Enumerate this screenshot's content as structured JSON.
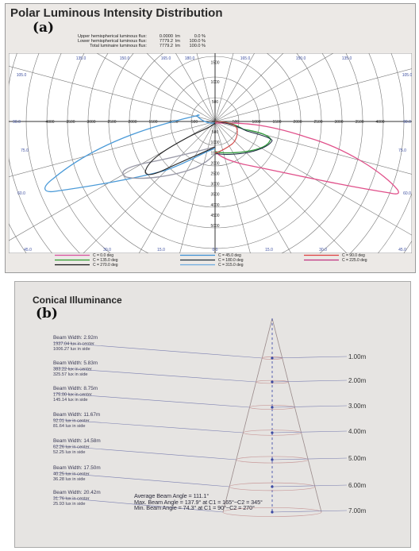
{
  "polar": {
    "title": "Polar Luminous Intensity Distribution",
    "tag": "(a)",
    "flux": [
      {
        "label": "Upper hemispherical luminous flux:",
        "value": "0.0000",
        "unit": "lm",
        "pct": "0.0 %"
      },
      {
        "label": "Lower hemispherical luminous flux:",
        "value": "7779.2",
        "unit": "lm",
        "pct": "100.0 %"
      },
      {
        "label": "Total luminaire luminous flux:",
        "value": "7779.2",
        "unit": "lm",
        "pct": "100.0 %"
      }
    ],
    "upper_ticks": [
      "500",
      "1000",
      "1500"
    ],
    "lower_ticks": [
      "500",
      "1000",
      "1500",
      "2000",
      "2500",
      "3000",
      "3500",
      "4000",
      "4500",
      "5000"
    ],
    "left_ticks": [
      "500",
      "1000",
      "1500",
      "2000",
      "2500",
      "3000",
      "3500",
      "4000"
    ],
    "right_ticks": [
      "500",
      "1000",
      "1500",
      "2000",
      "2500",
      "3000",
      "3500",
      "4000"
    ],
    "angle_labels": {
      "top": [
        "135.0",
        "150.0",
        "165.0",
        "180.0",
        "165.0",
        "150.0",
        "135.0"
      ],
      "upper_side": [
        "105.0",
        "105.0"
      ],
      "h_left": "90.0",
      "h_right": "90.0",
      "lower_side": [
        "75.0",
        "75.0"
      ],
      "low_side": [
        "60.0",
        "60.0"
      ],
      "bottom": [
        "45.0",
        "30.0",
        "15.0",
        "0.0",
        "15.0",
        "30.0",
        "45.0"
      ]
    },
    "legend": [
      {
        "label": "C = 0.0 deg",
        "color": "#d94fa0"
      },
      {
        "label": "C = 45.0 deg",
        "color": "#3c8fd6"
      },
      {
        "label": "C = 90.0 deg",
        "color": "#e04040"
      },
      {
        "label": "C = 135.0 deg",
        "color": "#2a9a2a"
      },
      {
        "label": "C = 180.0 deg",
        "color": "#20303c"
      },
      {
        "label": "C = 225.0 deg",
        "color": "#c03080"
      },
      {
        "label": "C = 270.0 deg",
        "color": "#111111"
      },
      {
        "label": "C = 315.0 deg",
        "color": "#6aaae0"
      }
    ],
    "curve_colors": {
      "c0": "#e0508a",
      "c45": "#4a9ad8",
      "c135": "#2f9a3a",
      "c180": "#1a2a40",
      "c225": "#9a9aa8",
      "c270": "#222222",
      "c90": "#d04848"
    }
  },
  "conical": {
    "title": "Conical Illuminance",
    "tag": "(b)",
    "levels": [
      {
        "beam": "Beam Width: 2.92m",
        "center": "1937.04 lux in center",
        "side": "1006.27 lux in side",
        "height": "1.00m"
      },
      {
        "beam": "Beam Width: 5.83m",
        "center": "383.22 lux in center",
        "side": "325.57 lux in side",
        "height": "2.00m"
      },
      {
        "beam": "Beam Width: 8.75m",
        "center": "175.00 lux in center",
        "side": "145.14 lux in side",
        "height": "3.00m"
      },
      {
        "beam": "Beam Width: 11.67m",
        "center": "92.01 lux in center",
        "side": "81.64 lux in side",
        "height": "4.00m"
      },
      {
        "beam": "Beam Width: 14.58m",
        "center": "62.26 lux in center",
        "side": "52.25 lux in side",
        "height": "5.00m"
      },
      {
        "beam": "Beam Width: 17.50m",
        "center": "40.25 lux in center",
        "side": "36.28 lux in side",
        "height": "6.00m"
      },
      {
        "beam": "Beam Width: 20.42m",
        "center": "31.76 lux in center",
        "side": "25.93 lux in side",
        "height": "7.00m"
      }
    ],
    "beam_angles": [
      "Average Beam Angle = 111.1°",
      "Max. Beam Angle = 137.9° at C1 = 165°~C2 = 345°",
      "Min. Beam Angle = 74.3° at C1 = 90°~C2 = 270°"
    ]
  }
}
